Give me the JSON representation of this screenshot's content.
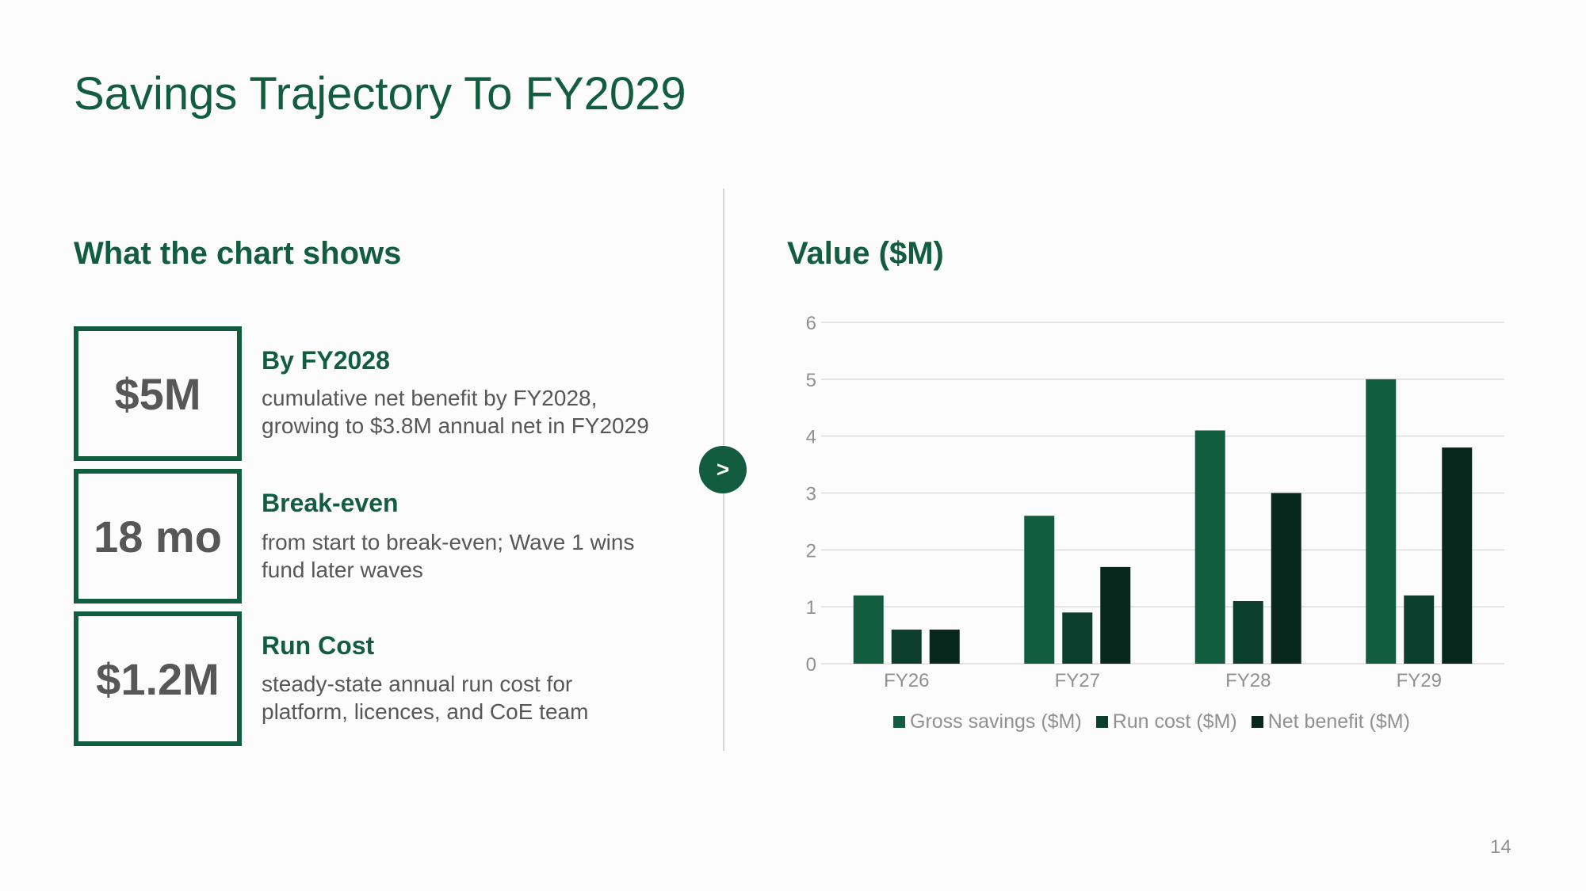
{
  "slide": {
    "title": "Savings Trajectory To FY2029",
    "page_number": "14"
  },
  "left_panel": {
    "heading": "What the chart shows",
    "stats": [
      {
        "value": "$5M",
        "title": "By FY2028",
        "description": "cumulative net benefit by FY2028, growing to $3.8M annual net in FY2029"
      },
      {
        "value": "18 mo",
        "title": "Break-even",
        "description": "from start to break-even; Wave 1 wins fund later waves"
      },
      {
        "value": "$1.2M",
        "title": "Run Cost",
        "description": "steady-state annual run cost for platform, licences, and CoE team"
      }
    ]
  },
  "arrow_glyph": ">",
  "colors": {
    "brand_green": "#125c40",
    "text_gray": "#575757",
    "axis_gray": "#909090",
    "gross_savings": "#125c40",
    "run_cost": "#0b3e2c",
    "net_benefit": "#08271d"
  },
  "chart_data": {
    "type": "bar",
    "title": "Value ($M)",
    "categories": [
      "FY26",
      "FY27",
      "FY28",
      "FY29"
    ],
    "series": [
      {
        "name": "Gross savings ($M)",
        "values": [
          1.2,
          2.6,
          4.1,
          5.0
        ],
        "color": "#125c40"
      },
      {
        "name": "Run cost ($M)",
        "values": [
          0.6,
          0.9,
          1.1,
          1.2
        ],
        "color": "#0b3e2c"
      },
      {
        "name": "Net benefit ($M)",
        "values": [
          0.6,
          1.7,
          3.0,
          3.8
        ],
        "color": "#08271d"
      }
    ],
    "ylim": [
      0,
      6
    ],
    "yticks": [
      0,
      1,
      2,
      3,
      4,
      5,
      6
    ],
    "grid": true,
    "legend": "bottom"
  }
}
